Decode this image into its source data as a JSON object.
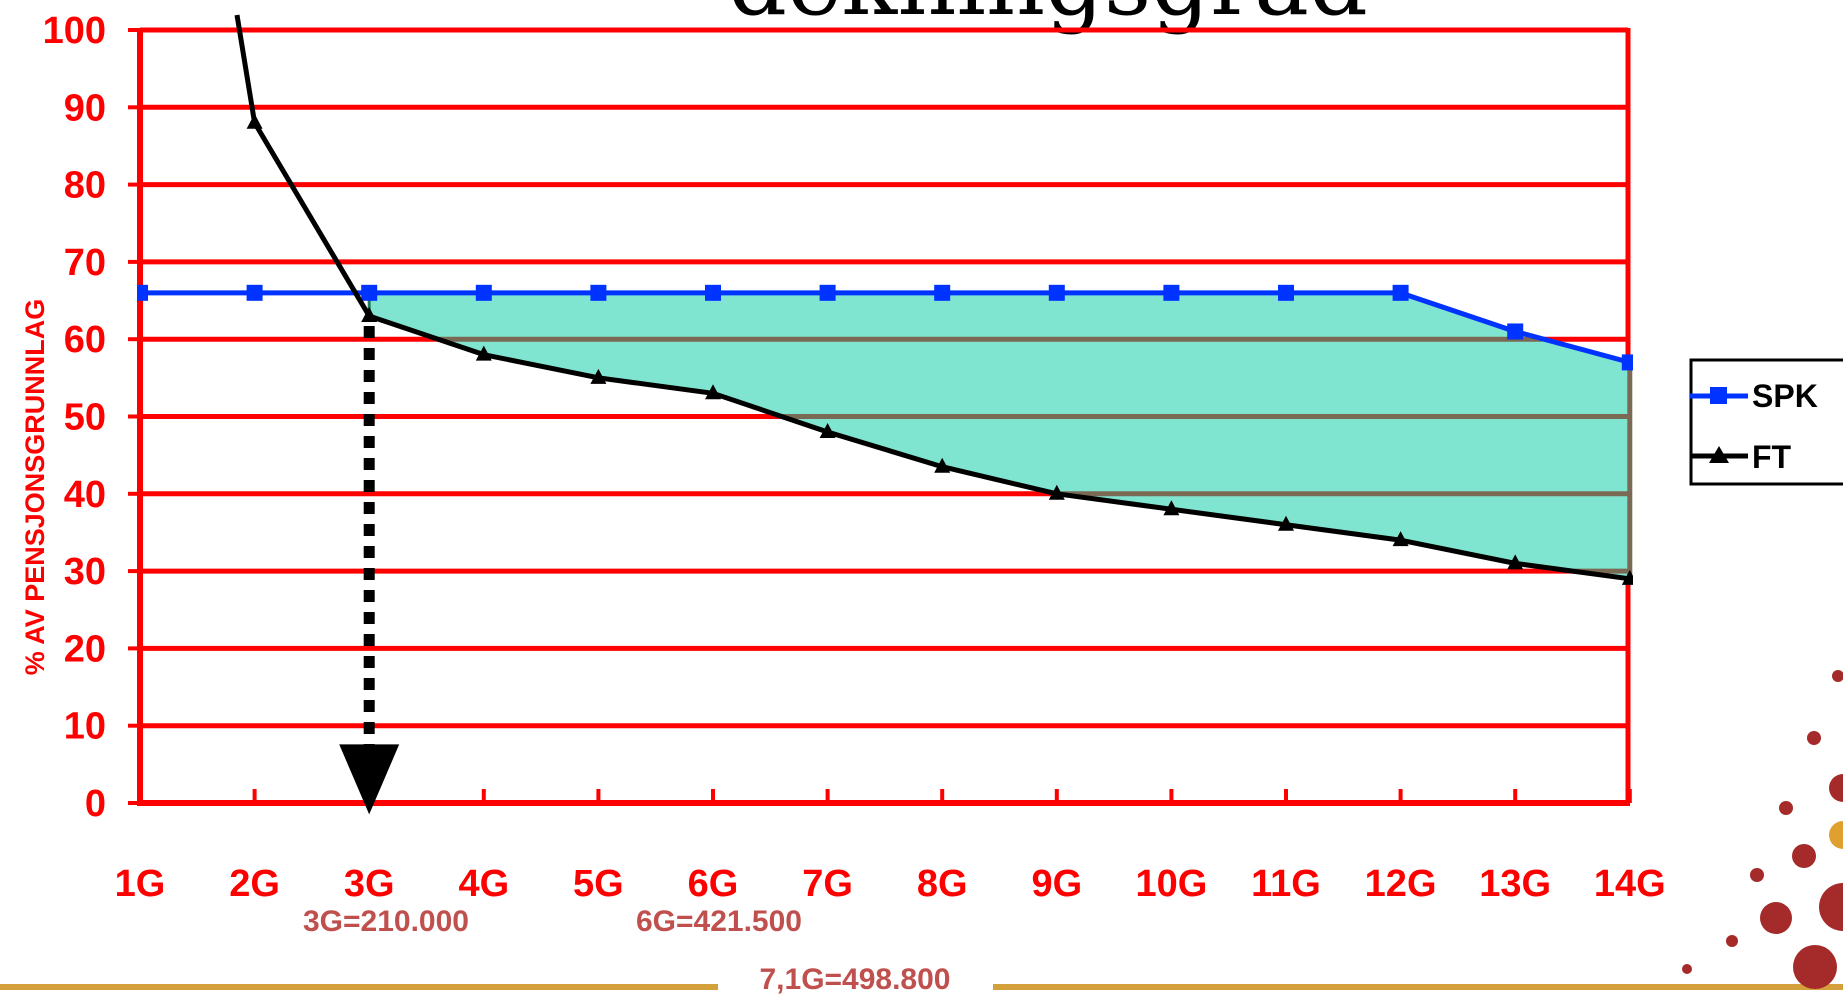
{
  "page": {
    "title_fragment": "dekningsgrad"
  },
  "chart_data": {
    "type": "line",
    "ylabel": "% AV PENSJONSGRUNNLAG",
    "ylim": [
      0,
      100
    ],
    "yticks": [
      "0",
      "10",
      "20",
      "30",
      "40",
      "50",
      "60",
      "70",
      "80",
      "90",
      "100"
    ],
    "categories": [
      "1G",
      "2G",
      "3G",
      "4G",
      "5G",
      "6G",
      "7G",
      "8G",
      "9G",
      "10G",
      "11G",
      "12G",
      "13G",
      "14G"
    ],
    "grid": true,
    "legend_position": "right",
    "series": [
      {
        "name": "SPK",
        "color": "#0033ff",
        "marker": "square",
        "values": [
          66,
          66,
          66,
          66,
          66,
          66,
          66,
          66,
          66,
          66,
          66,
          66,
          61,
          57
        ]
      },
      {
        "name": "FT",
        "color": "#000000",
        "marker": "triangle",
        "values": [
          null,
          88,
          63,
          58,
          55,
          53,
          48,
          43.5,
          40,
          38,
          36,
          34,
          31,
          29
        ]
      }
    ],
    "shaded_area": {
      "between": [
        "SPK",
        "FT"
      ],
      "from": "3G",
      "to": "14G",
      "color": "#80e5d0"
    },
    "arrow": {
      "at": "3G",
      "from_value": 63,
      "to_value": 5
    },
    "annotations": [
      "3G=210.000",
      "6G=421.500",
      "7,1G=498.800"
    ]
  },
  "colors": {
    "axis": "#ff0000",
    "grid": "#ff0000",
    "grid_inside_area": "#7a6a55",
    "footer_line": "#d4a03c",
    "annotation": "#c0504d"
  }
}
